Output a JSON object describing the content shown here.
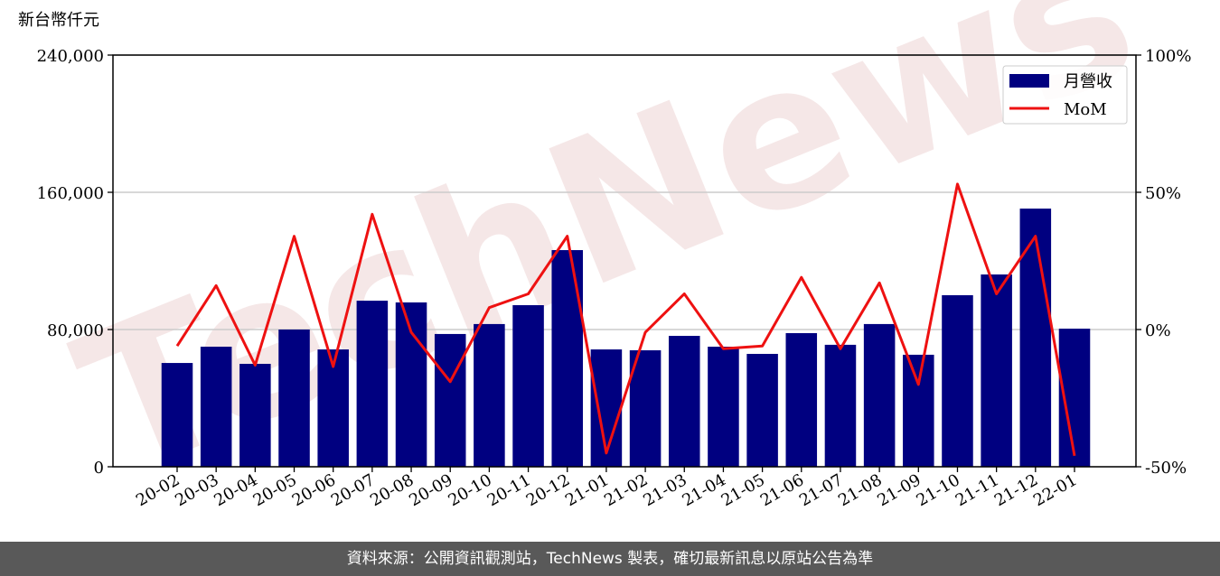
{
  "chart_data": {
    "type": "bar",
    "y_label": "新台幣仟元",
    "watermark": "TechNews",
    "categories": [
      "20-02",
      "20-03",
      "20-04",
      "20-05",
      "20-06",
      "20-07",
      "20-08",
      "20-09",
      "20-10",
      "20-11",
      "20-12",
      "21-01",
      "21-02",
      "21-03",
      "21-04",
      "21-05",
      "21-06",
      "21-07",
      "21-08",
      "21-09",
      "21-10",
      "21-11",
      "21-12",
      "22-01"
    ],
    "series": [
      {
        "name": "月營收",
        "type": "bar",
        "color": "#000080",
        "values": [
          60500,
          70000,
          60000,
          80000,
          68400,
          96800,
          95800,
          77400,
          83200,
          94200,
          126300,
          68400,
          67900,
          76300,
          70000,
          65800,
          77900,
          71100,
          83200,
          65300,
          100000,
          112100,
          150500,
          80500
        ]
      },
      {
        "name": "MoM",
        "type": "line",
        "axis": "y2",
        "color": "#ee1111",
        "values": [
          -6,
          16,
          -13,
          34,
          -13.5,
          42,
          -1,
          -19,
          8,
          13,
          34,
          -45,
          -1,
          13,
          -7,
          -6,
          19,
          -7,
          17,
          -20,
          53,
          13,
          34,
          -46
        ]
      }
    ],
    "ylim": [
      0,
      240000
    ],
    "yticks": [
      0,
      {
        "value": 80000,
        "label": "80,000"
      },
      {
        "value": 160000,
        "label": "160,000"
      },
      {
        "value": 240000,
        "label": "240,000"
      }
    ],
    "y2lim": [
      -50,
      100
    ],
    "y2ticks": [
      {
        "value": -50,
        "label": "-50%"
      },
      {
        "value": 0,
        "label": "0%"
      },
      {
        "value": 50,
        "label": "50%"
      },
      {
        "value": 100,
        "label": "100%"
      }
    ],
    "grid": true,
    "legend": "upper right"
  },
  "footer": "資料來源：公開資訊觀測站，TechNews 製表，確切最新訊息以原站公告為準"
}
